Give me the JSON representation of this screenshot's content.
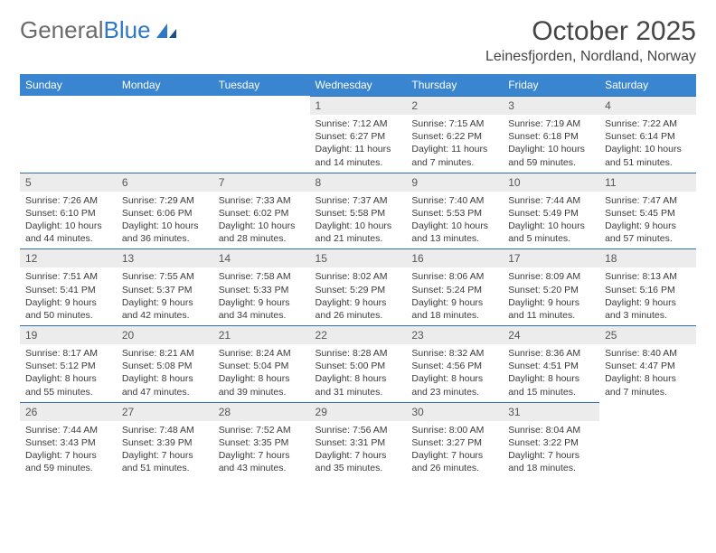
{
  "brand": {
    "part1": "General",
    "part2": "Blue"
  },
  "title": "October 2025",
  "location": "Leinesfjorden, Nordland, Norway",
  "colors": {
    "header_bg": "#3a85d0",
    "header_text": "#ffffff",
    "daynum_bg": "#ececec",
    "rule": "#2f6fb0",
    "brand_gray": "#6b6b6b",
    "brand_blue": "#2f78c4"
  },
  "weekdays": [
    "Sunday",
    "Monday",
    "Tuesday",
    "Wednesday",
    "Thursday",
    "Friday",
    "Saturday"
  ],
  "weeks": [
    [
      {
        "blank": true
      },
      {
        "blank": true
      },
      {
        "blank": true
      },
      {
        "day": "1",
        "sunrise": "7:12 AM",
        "sunset": "6:27 PM",
        "daylight": "11 hours and 14 minutes."
      },
      {
        "day": "2",
        "sunrise": "7:15 AM",
        "sunset": "6:22 PM",
        "daylight": "11 hours and 7 minutes."
      },
      {
        "day": "3",
        "sunrise": "7:19 AM",
        "sunset": "6:18 PM",
        "daylight": "10 hours and 59 minutes."
      },
      {
        "day": "4",
        "sunrise": "7:22 AM",
        "sunset": "6:14 PM",
        "daylight": "10 hours and 51 minutes."
      }
    ],
    [
      {
        "day": "5",
        "sunrise": "7:26 AM",
        "sunset": "6:10 PM",
        "daylight": "10 hours and 44 minutes."
      },
      {
        "day": "6",
        "sunrise": "7:29 AM",
        "sunset": "6:06 PM",
        "daylight": "10 hours and 36 minutes."
      },
      {
        "day": "7",
        "sunrise": "7:33 AM",
        "sunset": "6:02 PM",
        "daylight": "10 hours and 28 minutes."
      },
      {
        "day": "8",
        "sunrise": "7:37 AM",
        "sunset": "5:58 PM",
        "daylight": "10 hours and 21 minutes."
      },
      {
        "day": "9",
        "sunrise": "7:40 AM",
        "sunset": "5:53 PM",
        "daylight": "10 hours and 13 minutes."
      },
      {
        "day": "10",
        "sunrise": "7:44 AM",
        "sunset": "5:49 PM",
        "daylight": "10 hours and 5 minutes."
      },
      {
        "day": "11",
        "sunrise": "7:47 AM",
        "sunset": "5:45 PM",
        "daylight": "9 hours and 57 minutes."
      }
    ],
    [
      {
        "day": "12",
        "sunrise": "7:51 AM",
        "sunset": "5:41 PM",
        "daylight": "9 hours and 50 minutes."
      },
      {
        "day": "13",
        "sunrise": "7:55 AM",
        "sunset": "5:37 PM",
        "daylight": "9 hours and 42 minutes."
      },
      {
        "day": "14",
        "sunrise": "7:58 AM",
        "sunset": "5:33 PM",
        "daylight": "9 hours and 34 minutes."
      },
      {
        "day": "15",
        "sunrise": "8:02 AM",
        "sunset": "5:29 PM",
        "daylight": "9 hours and 26 minutes."
      },
      {
        "day": "16",
        "sunrise": "8:06 AM",
        "sunset": "5:24 PM",
        "daylight": "9 hours and 18 minutes."
      },
      {
        "day": "17",
        "sunrise": "8:09 AM",
        "sunset": "5:20 PM",
        "daylight": "9 hours and 11 minutes."
      },
      {
        "day": "18",
        "sunrise": "8:13 AM",
        "sunset": "5:16 PM",
        "daylight": "9 hours and 3 minutes."
      }
    ],
    [
      {
        "day": "19",
        "sunrise": "8:17 AM",
        "sunset": "5:12 PM",
        "daylight": "8 hours and 55 minutes."
      },
      {
        "day": "20",
        "sunrise": "8:21 AM",
        "sunset": "5:08 PM",
        "daylight": "8 hours and 47 minutes."
      },
      {
        "day": "21",
        "sunrise": "8:24 AM",
        "sunset": "5:04 PM",
        "daylight": "8 hours and 39 minutes."
      },
      {
        "day": "22",
        "sunrise": "8:28 AM",
        "sunset": "5:00 PM",
        "daylight": "8 hours and 31 minutes."
      },
      {
        "day": "23",
        "sunrise": "8:32 AM",
        "sunset": "4:56 PM",
        "daylight": "8 hours and 23 minutes."
      },
      {
        "day": "24",
        "sunrise": "8:36 AM",
        "sunset": "4:51 PM",
        "daylight": "8 hours and 15 minutes."
      },
      {
        "day": "25",
        "sunrise": "8:40 AM",
        "sunset": "4:47 PM",
        "daylight": "8 hours and 7 minutes."
      }
    ],
    [
      {
        "day": "26",
        "sunrise": "7:44 AM",
        "sunset": "3:43 PM",
        "daylight": "7 hours and 59 minutes."
      },
      {
        "day": "27",
        "sunrise": "7:48 AM",
        "sunset": "3:39 PM",
        "daylight": "7 hours and 51 minutes."
      },
      {
        "day": "28",
        "sunrise": "7:52 AM",
        "sunset": "3:35 PM",
        "daylight": "7 hours and 43 minutes."
      },
      {
        "day": "29",
        "sunrise": "7:56 AM",
        "sunset": "3:31 PM",
        "daylight": "7 hours and 35 minutes."
      },
      {
        "day": "30",
        "sunrise": "8:00 AM",
        "sunset": "3:27 PM",
        "daylight": "7 hours and 26 minutes."
      },
      {
        "day": "31",
        "sunrise": "8:04 AM",
        "sunset": "3:22 PM",
        "daylight": "7 hours and 18 minutes."
      },
      {
        "blank": true
      }
    ]
  ],
  "labels": {
    "sunrise": "Sunrise:",
    "sunset": "Sunset:",
    "daylight": "Daylight:"
  }
}
